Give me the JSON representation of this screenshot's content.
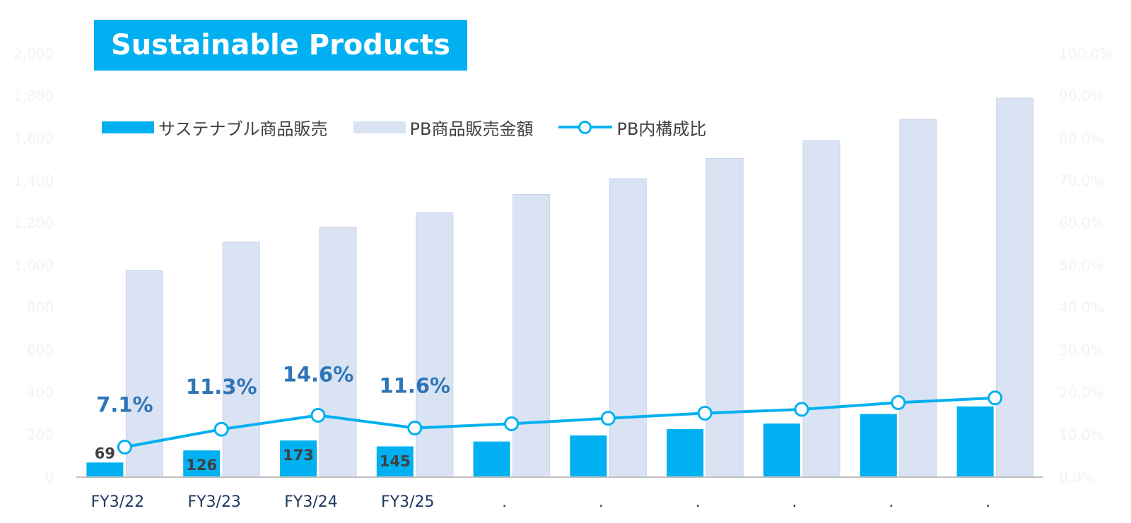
{
  "title": "Sustainable Products",
  "colors": {
    "sustainable": "#00B0F0",
    "pb_total": "#DAE3F3",
    "ratio_line": "#00B0F0",
    "pct_label": "#2E75B6",
    "value_label": "#404040",
    "x_label": "#1F3864",
    "axis_tick": "#F2F2F2"
  },
  "legend": [
    {
      "label": "サステナブル商品販売",
      "kind": "bar-dark"
    },
    {
      "label": "PB商品販売金額",
      "kind": "bar-light"
    },
    {
      "label": "PB内構成比",
      "kind": "line"
    }
  ],
  "chart_data": {
    "type": "bar",
    "categories": [
      "FY3/22",
      "FY3/23",
      "FY3/24",
      "FY3/25",
      ".",
      ".",
      ".",
      ".",
      ".",
      "."
    ],
    "series": [
      {
        "name": "サステナブル商品販売",
        "type": "bar",
        "axis": "left",
        "values": [
          69,
          126,
          173,
          145,
          168,
          197,
          227,
          253,
          298,
          334
        ]
      },
      {
        "name": "PB商品販売金額",
        "type": "bar",
        "axis": "left",
        "values": [
          975,
          1110,
          1180,
          1250,
          1335,
          1410,
          1505,
          1590,
          1690,
          1790
        ]
      },
      {
        "name": "PB内構成比",
        "type": "line",
        "axis": "right",
        "unit": "%",
        "values": [
          7.1,
          11.3,
          14.6,
          11.6,
          12.6,
          13.9,
          15.1,
          16.0,
          17.6,
          18.7
        ]
      }
    ],
    "data_labels": {
      "bars": [
        "69",
        "126",
        "173",
        "145"
      ],
      "line": [
        "7.1%",
        "11.3%",
        "14.6%",
        "11.6%"
      ]
    },
    "left_axis": {
      "ylim": [
        0,
        2000
      ],
      "ticks": [
        0,
        200,
        400,
        600,
        800,
        1000,
        1200,
        1400,
        1600,
        1800,
        2000
      ],
      "tick_labels": [
        "0",
        "200",
        "400",
        "600",
        "800",
        "1,000",
        "1,200",
        "1,400",
        "1,600",
        "1,800",
        "2,000"
      ]
    },
    "right_axis": {
      "ylim": [
        0,
        100
      ],
      "ticks": [
        0,
        10,
        20,
        30,
        40,
        50,
        60,
        70,
        80,
        90,
        100
      ],
      "tick_labels": [
        "0.0%",
        "10.0%",
        "20.0%",
        "30.0%",
        "40.0%",
        "50.0%",
        "60.0%",
        "70.0%",
        "80.0%",
        "90.0%",
        "100.0%"
      ]
    },
    "legend_position": "top-left",
    "grid": false
  }
}
